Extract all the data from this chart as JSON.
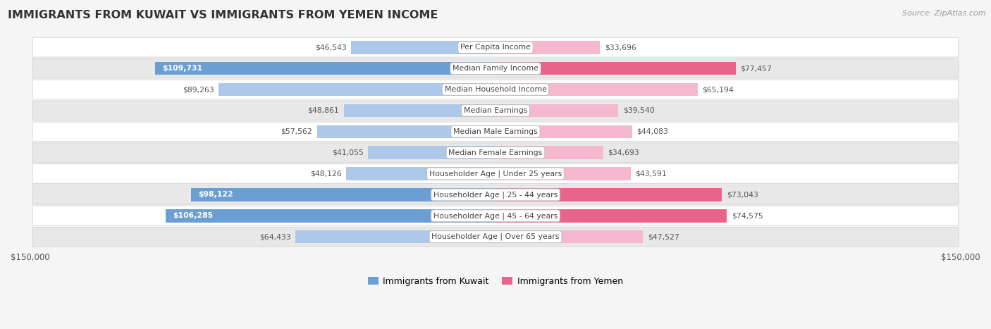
{
  "title": "IMMIGRANTS FROM KUWAIT VS IMMIGRANTS FROM YEMEN INCOME",
  "source": "Source: ZipAtlas.com",
  "categories": [
    "Per Capita Income",
    "Median Family Income",
    "Median Household Income",
    "Median Earnings",
    "Median Male Earnings",
    "Median Female Earnings",
    "Householder Age | Under 25 years",
    "Householder Age | 25 - 44 years",
    "Householder Age | 45 - 64 years",
    "Householder Age | Over 65 years"
  ],
  "kuwait_values": [
    46543,
    109731,
    89263,
    48861,
    57562,
    41055,
    48126,
    98122,
    106285,
    64433
  ],
  "yemen_values": [
    33696,
    77457,
    65194,
    39540,
    44083,
    34693,
    43591,
    73043,
    74575,
    47527
  ],
  "kuwait_labels": [
    "$46,543",
    "$109,731",
    "$89,263",
    "$48,861",
    "$57,562",
    "$41,055",
    "$48,126",
    "$98,122",
    "$106,285",
    "$64,433"
  ],
  "yemen_labels": [
    "$33,696",
    "$77,457",
    "$65,194",
    "$39,540",
    "$44,083",
    "$34,693",
    "$43,591",
    "$73,043",
    "$74,575",
    "$47,527"
  ],
  "kuwait_color_normal": "#adc8e8",
  "kuwait_color_highlight": "#6b9fd4",
  "yemen_color_normal": "#f5b8cf",
  "yemen_color_highlight": "#e8648a",
  "kuwait_highlight": [
    1,
    7,
    8
  ],
  "yemen_highlight": [
    1,
    7,
    8
  ],
  "max_value": 150000,
  "legend_kuwait": "Immigrants from Kuwait",
  "legend_yemen": "Immigrants from Yemen",
  "background_color": "#f5f5f5",
  "row_bg_even": "#ffffff",
  "row_bg_odd": "#e8e8e8",
  "row_border": "#cccccc"
}
